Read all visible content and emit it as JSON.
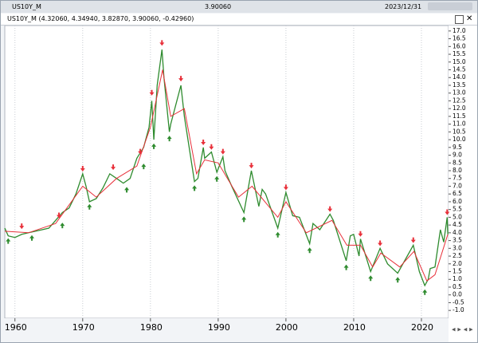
{
  "window": {
    "symbol": "US10Y_M",
    "price": "3.90060",
    "date": "2023/12/31"
  },
  "chart_data": {
    "type": "line",
    "title": "US10Y_M (4.32060, 4.34940, 3.82870, 3.90060, -0.42960)",
    "xlim": [
      1958.5,
      2024.0
    ],
    "xticks": [
      1960,
      1970,
      1980,
      1990,
      2000,
      2010,
      2020
    ],
    "ylim": [
      -1.3,
      17.3
    ],
    "yticks": [
      {
        "value": -1,
        "label": "-1.0"
      },
      -0.5,
      {
        "value": 0,
        "label": "0.0"
      },
      0.5,
      {
        "value": 1,
        "label": "1.0"
      },
      1.5,
      {
        "value": 2,
        "label": "2.0"
      },
      2.5,
      {
        "value": 3,
        "label": "3.0"
      },
      3.5,
      {
        "value": 4,
        "label": "4.0"
      },
      4.5,
      {
        "value": 5,
        "label": "5.0"
      },
      5.5,
      {
        "value": 6,
        "label": "6.0"
      },
      6.5,
      {
        "value": 7,
        "label": "7.0"
      },
      7.5,
      {
        "value": 8,
        "label": "8.0"
      },
      8.5,
      {
        "value": 9,
        "label": "9.0"
      },
      9.5,
      {
        "value": 10,
        "label": "10.0"
      },
      10.5,
      {
        "value": 11,
        "label": "11.0"
      },
      11.5,
      {
        "value": 12,
        "label": "12.0"
      },
      12.5,
      {
        "value": 13,
        "label": "13.0"
      },
      13.5,
      {
        "value": 14,
        "label": "14.0"
      },
      14.5,
      {
        "value": 15,
        "label": "15.0"
      },
      15.5,
      {
        "value": 16,
        "label": "16.0"
      },
      16.5,
      {
        "value": 17,
        "label": "17.0"
      }
    ],
    "grid": "x",
    "series": [
      {
        "color": "#2e8b2e",
        "x": [
          1958.5,
          1959,
          1960,
          1961,
          1962,
          1963,
          1964,
          1965,
          1966,
          1967,
          1968,
          1969,
          1970,
          1970.5,
          1971,
          1972,
          1973,
          1974,
          1975,
          1976,
          1977,
          1978,
          1979,
          1979.8,
          1980.2,
          1980.5,
          1981,
          1981.7,
          1982,
          1982.8,
          1983,
          1984.5,
          1985,
          1986.5,
          1987,
          1987.8,
          1988,
          1989,
          1989.8,
          1990.7,
          1991,
          1992,
          1993.8,
          1994.9,
          1996,
          1996.5,
          1997,
          1998.8,
          2000,
          2001,
          2002,
          2003.5,
          2004,
          2005,
          2006.5,
          2007,
          2008.9,
          2009.5,
          2010,
          2010.8,
          2011,
          2012.5,
          2013.9,
          2015,
          2016.5,
          2018.8,
          2019.7,
          2020.5,
          2021,
          2021.3,
          2022,
          2022.8,
          2023.3,
          2023.8,
          2023.9
        ],
        "values": [
          4.3,
          3.8,
          3.7,
          3.9,
          4.0,
          4.1,
          4.2,
          4.3,
          4.8,
          5.3,
          5.6,
          6.5,
          7.8,
          7.0,
          6.0,
          6.2,
          6.9,
          7.8,
          7.5,
          7.2,
          7.5,
          8.8,
          9.5,
          10.8,
          12.5,
          10.0,
          13.5,
          15.8,
          14.0,
          10.5,
          11.0,
          13.5,
          11.5,
          7.3,
          7.5,
          9.5,
          8.8,
          9.2,
          7.9,
          8.9,
          8.0,
          7.0,
          5.3,
          8.0,
          5.7,
          6.8,
          6.5,
          4.3,
          6.6,
          5.1,
          5.0,
          3.3,
          4.6,
          4.2,
          5.2,
          4.8,
          2.2,
          3.8,
          3.9,
          2.5,
          3.6,
          1.5,
          3.0,
          2.0,
          1.4,
          3.2,
          1.5,
          0.6,
          1.0,
          1.7,
          1.8,
          4.2,
          3.4,
          5.0,
          3.9
        ]
      },
      {
        "color": "#e8303a",
        "x": [
          1958.5,
          1962,
          1966,
          1970,
          1972,
          1975,
          1978,
          1980,
          1981.8,
          1983,
          1985,
          1986.8,
          1988,
          1990,
          1993,
          1995,
          1998.8,
          2000,
          2003,
          2006.8,
          2009,
          2011,
          2012.8,
          2014,
          2016.8,
          2018.9,
          2020.8,
          2022,
          2023.9
        ],
        "values": [
          4.1,
          4.0,
          4.6,
          7.0,
          6.3,
          7.5,
          8.3,
          10.8,
          14.5,
          11.5,
          12.0,
          7.8,
          8.7,
          8.5,
          6.3,
          7.0,
          5.0,
          6.0,
          4.0,
          4.8,
          3.2,
          3.2,
          1.8,
          2.7,
          1.8,
          2.8,
          0.9,
          1.3,
          3.9
        ]
      }
    ],
    "signals": [
      {
        "color": "#e8303a",
        "x": [
          1961,
          1966.5,
          1970,
          1974.5,
          1978.5,
          1980.2,
          1981.7,
          1984.5,
          1987.8,
          1989,
          1990.7,
          1994.9,
          2000,
          2006.5,
          2011,
          2013.9,
          2018.8,
          2023.8
        ],
        "values": [
          4.4,
          5.1,
          8.1,
          8.2,
          9.2,
          13.0,
          16.2,
          13.9,
          9.8,
          9.5,
          9.2,
          8.3,
          6.9,
          5.5,
          3.9,
          3.3,
          3.5,
          5.3
        ]
      },
      {
        "color": "#2e8b2e",
        "x": [
          1959,
          1962.5,
          1967,
          1971,
          1976.5,
          1979,
          1980.5,
          1982.8,
          1986.5,
          1989.8,
          1993.8,
          1998.8,
          2003.5,
          2008.9,
          2012.5,
          2016.5,
          2020.5
        ],
        "values": [
          3.5,
          3.7,
          4.5,
          5.7,
          6.8,
          8.3,
          9.6,
          10.1,
          6.9,
          7.5,
          4.9,
          3.9,
          2.9,
          1.8,
          1.1,
          1.0,
          0.2
        ]
      }
    ]
  }
}
